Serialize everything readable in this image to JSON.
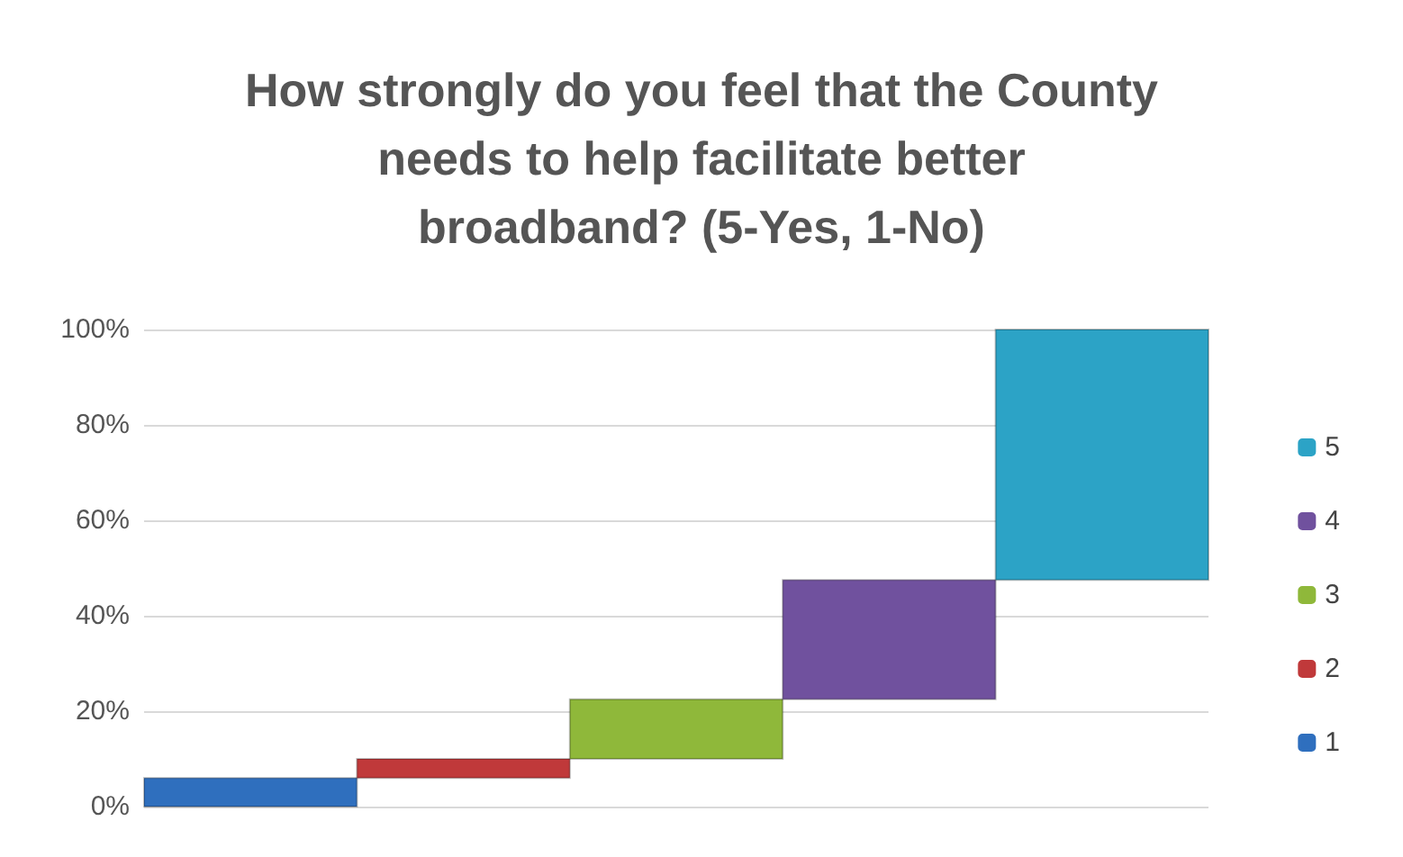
{
  "chart_data": {
    "type": "bar",
    "title": "How strongly do you feel that the County\nneeds to help facilitate better\nbroadband? (5-Yes, 1-No)",
    "categories": [
      null,
      null,
      null,
      null,
      null
    ],
    "series": [
      {
        "name": "1",
        "color": "#2f6fbe",
        "values": [
          6,
          null,
          null,
          null,
          null
        ],
        "base": [
          0,
          null,
          null,
          null,
          null
        ]
      },
      {
        "name": "2",
        "color": "#c0393a",
        "values": [
          null,
          4,
          null,
          null,
          null
        ],
        "base": [
          null,
          6,
          null,
          null,
          null
        ]
      },
      {
        "name": "3",
        "color": "#8fb83a",
        "values": [
          null,
          null,
          12.5,
          null,
          null
        ],
        "base": [
          null,
          null,
          10,
          null,
          null
        ]
      },
      {
        "name": "4",
        "color": "#70519e",
        "values": [
          null,
          null,
          null,
          25,
          null
        ],
        "base": [
          null,
          null,
          null,
          22.5,
          null
        ]
      },
      {
        "name": "5",
        "color": "#2ca3c6",
        "values": [
          null,
          null,
          null,
          null,
          52.5
        ],
        "base": [
          null,
          null,
          null,
          null,
          47.5
        ]
      }
    ],
    "ylim": [
      0,
      100
    ],
    "yticks": [
      {
        "value": 0,
        "label": "0%"
      },
      {
        "value": 20,
        "label": "20%"
      },
      {
        "value": 40,
        "label": "40%"
      },
      {
        "value": 60,
        "label": "60%"
      },
      {
        "value": 80,
        "label": "80%"
      },
      {
        "value": 100,
        "label": "100%"
      }
    ],
    "grid": "y",
    "legend": "right"
  }
}
